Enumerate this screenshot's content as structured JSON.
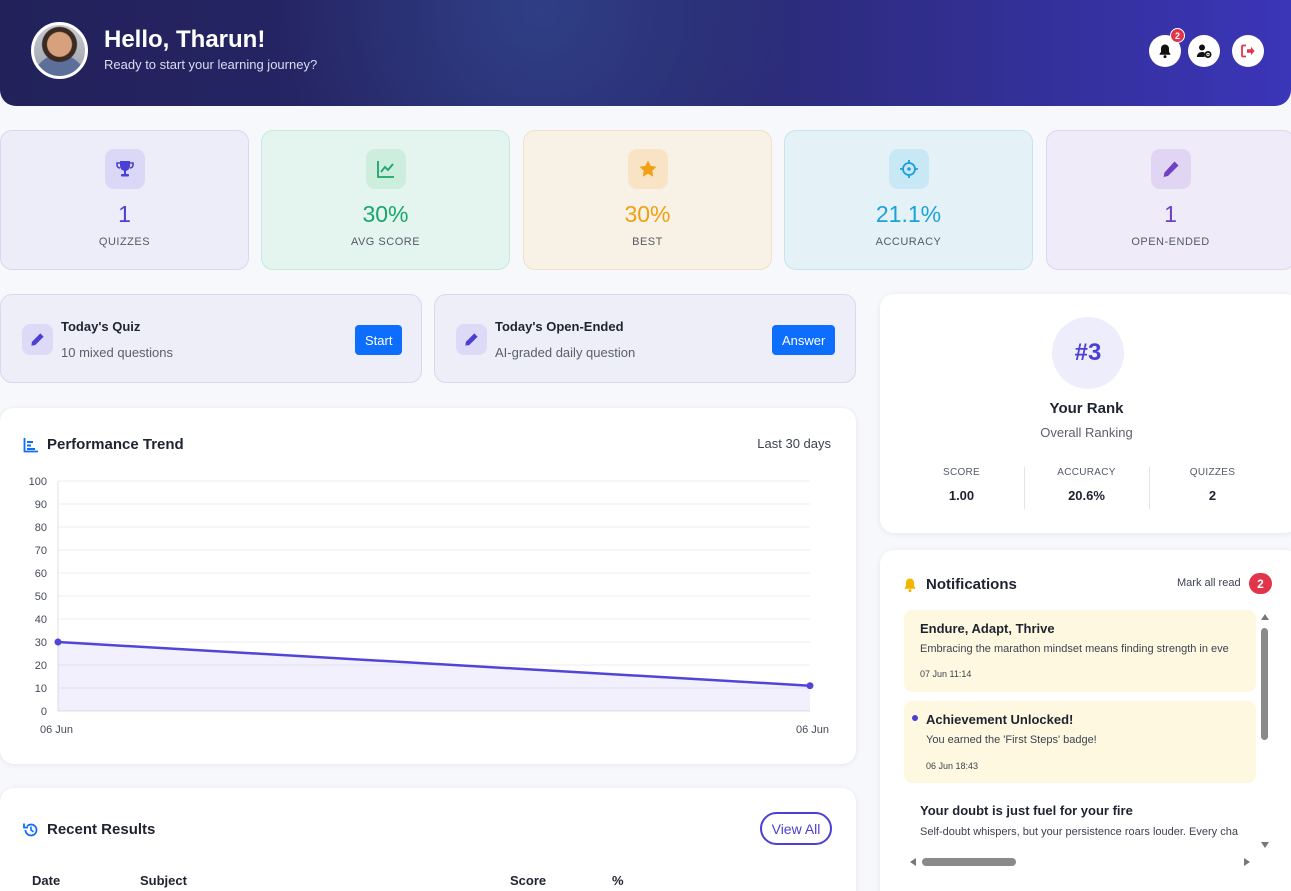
{
  "header": {
    "greeting": "Hello, Tharun!",
    "subtitle": "Ready to start your learning journey?",
    "notification_count": "2"
  },
  "stats": [
    {
      "value": "1",
      "label": "QUIZZES",
      "icon": "trophy-icon",
      "color": "#4b3fd4"
    },
    {
      "value": "30%",
      "label": "AVG SCORE",
      "icon": "trend-chart-icon",
      "color": "#18a66b"
    },
    {
      "value": "30%",
      "label": "BEST",
      "icon": "star-icon",
      "color": "#f0a012"
    },
    {
      "value": "21.1%",
      "label": "ACCURACY",
      "icon": "crosshair-icon",
      "color": "#1ba2d8"
    },
    {
      "value": "1",
      "label": "OPEN-ENDED",
      "icon": "pencil-icon",
      "color": "#6f42c1"
    }
  ],
  "daily": [
    {
      "title": "Today's Quiz",
      "subtitle": "10 mixed questions",
      "button": "Start"
    },
    {
      "title": "Today's Open-Ended",
      "subtitle": "AI-graded daily question",
      "button": "Answer"
    }
  ],
  "performance": {
    "title": "Performance Trend",
    "range": "Last 30 days"
  },
  "chart_data": {
    "type": "line",
    "categories": [
      "06 Jun",
      "06 Jun"
    ],
    "series": [
      {
        "values": [
          30,
          11
        ]
      }
    ],
    "ylim": [
      0,
      100
    ],
    "yticks": [
      "0",
      "10",
      "20",
      "30",
      "40",
      "50",
      "60",
      "70",
      "80",
      "90",
      "100"
    ],
    "xlabel": "",
    "ylabel": "",
    "grid": true,
    "color": "#5145d8"
  },
  "rank": {
    "position": "#3",
    "title": "Your Rank",
    "subtitle": "Overall Ranking",
    "stats": [
      {
        "label": "SCORE",
        "value": "1.00"
      },
      {
        "label": "ACCURACY",
        "value": "20.6%"
      },
      {
        "label": "QUIZZES",
        "value": "2"
      }
    ]
  },
  "notifications": {
    "title": "Notifications",
    "mark_all": "Mark all read",
    "count": "2",
    "items": [
      {
        "title": "Endure, Adapt, Thrive",
        "body": "Embracing the marathon mindset means finding strength in eve",
        "date": "07 Jun 11:14"
      },
      {
        "title": "Achievement Unlocked!",
        "body": "You earned the 'First Steps' badge!",
        "date": "06 Jun 18:43"
      },
      {
        "title": "Your doubt is just fuel for your fire",
        "body": "Self-doubt whispers, but your persistence roars louder. Every cha",
        "date": ""
      }
    ]
  },
  "recent": {
    "title": "Recent Results",
    "view_all": "View All",
    "columns": [
      "Date",
      "Subject",
      "Score",
      "%"
    ]
  }
}
